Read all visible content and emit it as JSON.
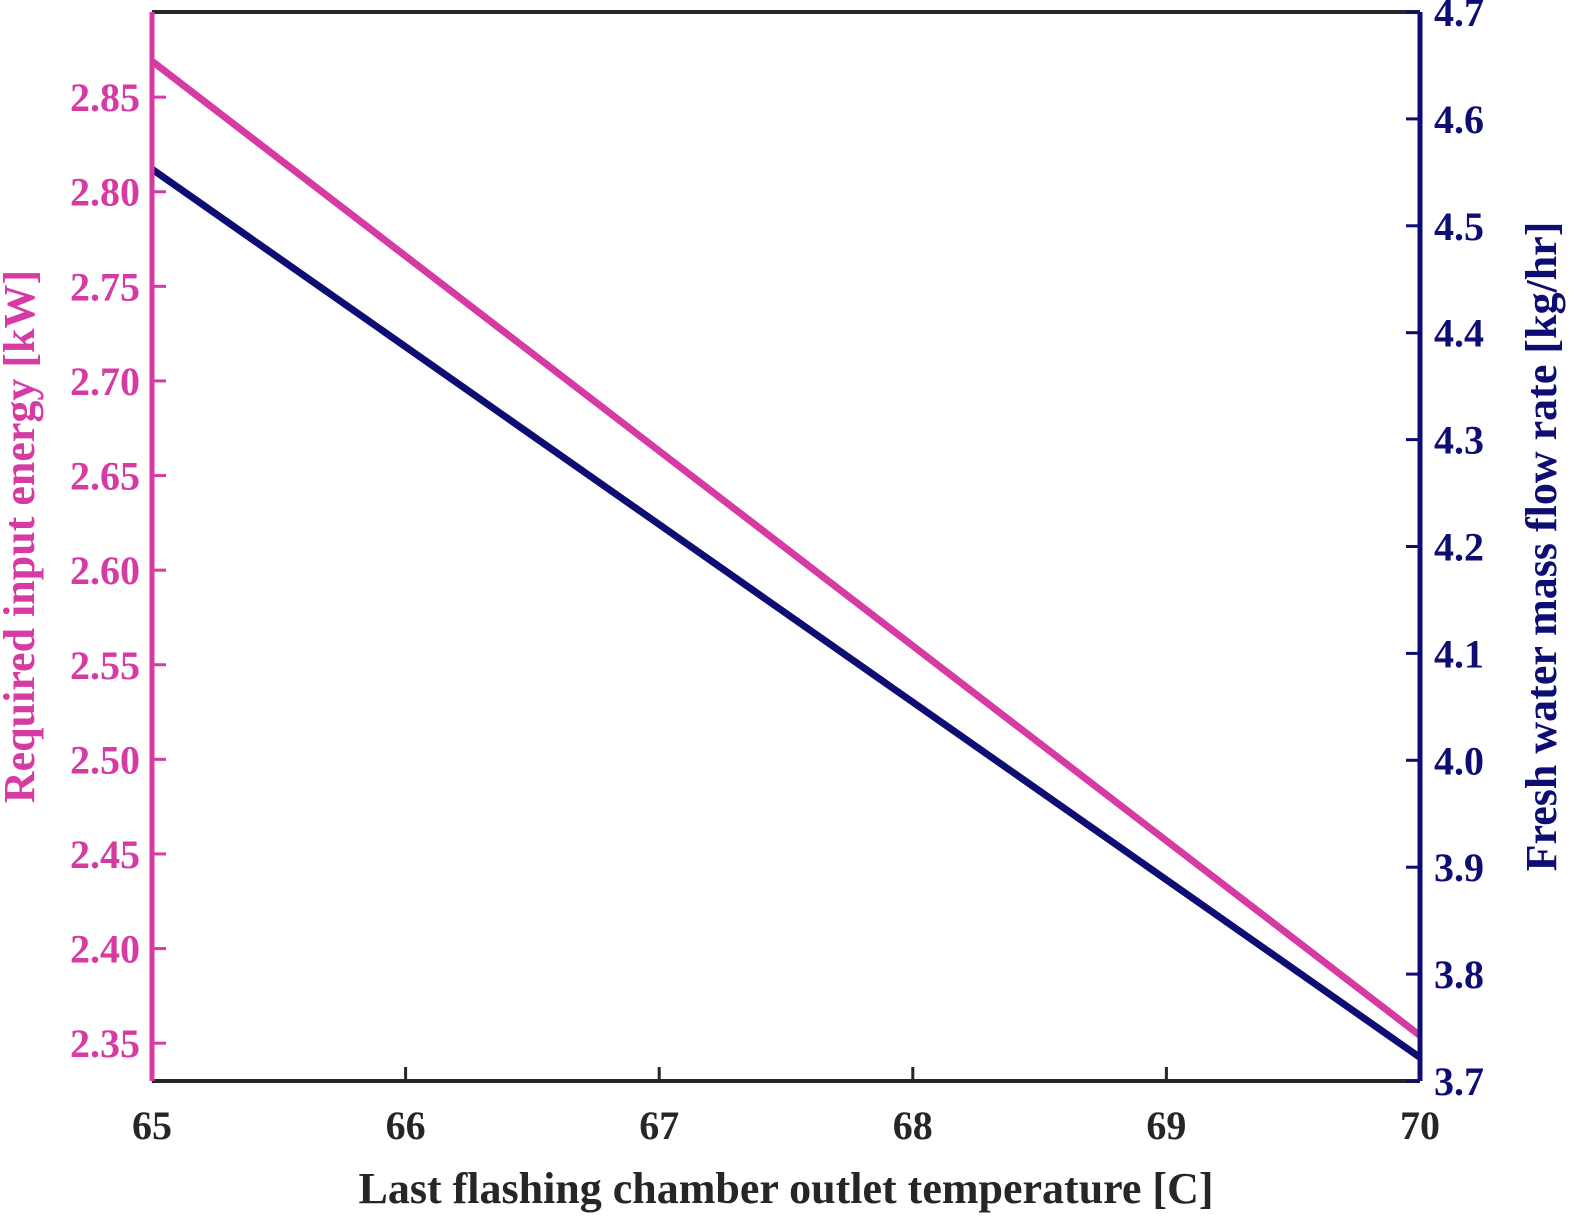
{
  "chart_data": {
    "type": "line",
    "title": "",
    "xlabel": "Last flashing chamber outlet temperature [C]",
    "ylabel_left": "Required input energy [kW]",
    "ylabel_right": "Fresh water mass flow rate [kg/hr]",
    "xlim": [
      65,
      70
    ],
    "ylim_left": [
      2.33,
      2.895
    ],
    "ylim_right": [
      3.7,
      4.7
    ],
    "x_ticks": [
      "65",
      "66",
      "67",
      "68",
      "69",
      "70"
    ],
    "y_left_ticks": [
      "2.35",
      "2.40",
      "2.45",
      "2.50",
      "2.55",
      "2.60",
      "2.65",
      "2.70",
      "2.75",
      "2.80",
      "2.85"
    ],
    "y_right_ticks": [
      "3.7",
      "3.8",
      "3.9",
      "4.0",
      "4.1",
      "4.2",
      "4.3",
      "4.4",
      "4.5",
      "4.6",
      "4.7"
    ],
    "grid": false,
    "series": [
      {
        "axis": "left",
        "color": "#d63aa3",
        "x": [
          65,
          70
        ],
        "y": [
          2.869,
          2.354
        ]
      },
      {
        "axis": "right",
        "color": "#0d0d73",
        "x": [
          65,
          70
        ],
        "y": [
          4.553,
          3.722
        ]
      }
    ],
    "colors": {
      "left_axis": "#d63aa3",
      "right_axis": "#0d0d73",
      "x_axis": "#262626"
    }
  }
}
